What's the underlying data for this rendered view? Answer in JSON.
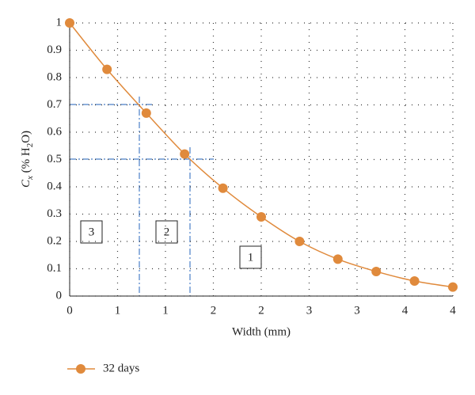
{
  "chart_data": {
    "type": "line",
    "xlabel": "Width (mm)",
    "ylabel": [
      "C",
      "x",
      " (% H",
      "2",
      "O)"
    ],
    "x": [
      0,
      0.39,
      0.8,
      1.2,
      1.6,
      2.0,
      2.4,
      2.8,
      3.2,
      3.6,
      4.0
    ],
    "series": [
      {
        "name": "32 days",
        "color": "#e08a3c",
        "values": [
          1,
          0.83,
          0.67,
          0.52,
          0.395,
          0.29,
          0.2,
          0.135,
          0.09,
          0.055,
          0.033
        ]
      }
    ],
    "xlim": [
      0,
      4
    ],
    "xticks": [
      0,
      {
        "value": 0.5,
        "label": "1"
      },
      1,
      {
        "value": 1.5,
        "label": "2"
      },
      2,
      {
        "value": 2.5,
        "label": "3"
      },
      3,
      {
        "value": 3.5,
        "label": "4"
      },
      4
    ],
    "ylim": [
      0,
      1
    ],
    "yticks": [
      0,
      0.1,
      0.2,
      0.3,
      0.4,
      0.5,
      0.6,
      0.7,
      0.8,
      0.9,
      1
    ],
    "grid": true,
    "legend": "bottom",
    "annotations": [
      "3",
      "2",
      "1"
    ]
  }
}
